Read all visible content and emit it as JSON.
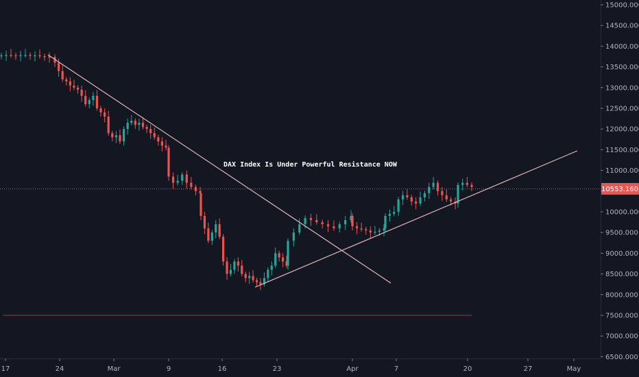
{
  "chart_data": {
    "type": "candlestick",
    "title": "",
    "annotation": "DAX Index Is Under Powerful Resistance NOW",
    "current_price": "10553.160",
    "support_level": 7500,
    "y_ticks": [
      "6500.000",
      "7000.000",
      "7500.000",
      "8000.000",
      "8500.000",
      "9000.000",
      "9500.000",
      "10000.000",
      "10500.000",
      "11000.000",
      "11500.000",
      "12000.000",
      "12500.000",
      "13000.000",
      "13500.000",
      "14000.000",
      "14500.000",
      "15000.000"
    ],
    "ylim": [
      6500,
      15000
    ],
    "x_ticks": [
      "17",
      "24",
      "Mar",
      "9",
      "16",
      "23",
      "Apr",
      "7",
      "20",
      "27",
      "May"
    ],
    "x_label": "",
    "y_label": "",
    "colors": {
      "up": "#26a69a",
      "down": "#ef5350",
      "trendline": "#e8b4b8",
      "price_line": "#ef5350",
      "background": "#131722",
      "tag": "#ef5350"
    },
    "candles_close_path": [
      [
        0,
        13780
      ],
      [
        2,
        13790
      ],
      [
        4,
        13780
      ],
      [
        6,
        13770
      ],
      [
        8,
        13785
      ],
      [
        10,
        13790
      ],
      [
        12,
        13775
      ],
      [
        14,
        13780
      ],
      [
        16,
        13760
      ],
      [
        18,
        13750
      ],
      [
        20,
        13740
      ],
      [
        22,
        13600
      ],
      [
        23,
        13400
      ],
      [
        24,
        13200
      ],
      [
        25,
        13150
      ],
      [
        26,
        13050
      ],
      [
        27,
        13000
      ],
      [
        28,
        12950
      ],
      [
        29,
        12800
      ],
      [
        30,
        12600
      ],
      [
        31,
        12700
      ],
      [
        32,
        12800
      ],
      [
        33,
        12500
      ],
      [
        34,
        12400
      ],
      [
        35,
        12300
      ],
      [
        36,
        11900
      ],
      [
        37,
        11800
      ],
      [
        38,
        11850
      ],
      [
        39,
        11700
      ],
      [
        40,
        12000
      ],
      [
        41,
        12150
      ],
      [
        42,
        12200
      ],
      [
        43,
        12100
      ],
      [
        44,
        12150
      ],
      [
        45,
        12050
      ],
      [
        46,
        12000
      ],
      [
        47,
        11900
      ],
      [
        48,
        11800
      ],
      [
        49,
        11700
      ],
      [
        50,
        11600
      ],
      [
        51,
        11550
      ],
      [
        52,
        10850
      ],
      [
        53,
        10700
      ],
      [
        54,
        10750
      ],
      [
        55,
        10900
      ],
      [
        56,
        10700
      ],
      [
        57,
        10600
      ],
      [
        58,
        10500
      ],
      [
        59,
        10450
      ],
      [
        60,
        9900
      ],
      [
        61,
        9600
      ],
      [
        62,
        9300
      ],
      [
        63,
        9500
      ],
      [
        64,
        9700
      ],
      [
        65,
        9400
      ],
      [
        66,
        8800
      ],
      [
        67,
        8500
      ],
      [
        68,
        8600
      ],
      [
        69,
        8800
      ],
      [
        70,
        8700
      ],
      [
        71,
        8500
      ],
      [
        72,
        8400
      ],
      [
        73,
        8450
      ],
      [
        74,
        8350
      ],
      [
        75,
        8300
      ],
      [
        76,
        8250
      ],
      [
        77,
        8400
      ],
      [
        78,
        8600
      ],
      [
        79,
        8700
      ],
      [
        80,
        9000
      ],
      [
        81,
        8900
      ],
      [
        82,
        8800
      ],
      [
        83,
        8700
      ],
      [
        84,
        9300
      ],
      [
        85,
        9500
      ],
      [
        86,
        9700
      ],
      [
        87,
        9850
      ],
      [
        88,
        9800
      ],
      [
        89,
        9750
      ],
      [
        90,
        9700
      ],
      [
        91,
        9650
      ],
      [
        92,
        9600
      ],
      [
        93,
        9700
      ],
      [
        94,
        9800
      ],
      [
        95,
        9900
      ],
      [
        96,
        9650
      ],
      [
        97,
        9600
      ],
      [
        98,
        9580
      ],
      [
        99,
        9550
      ],
      [
        100,
        9500
      ],
      [
        101,
        9520
      ],
      [
        102,
        9550
      ],
      [
        103,
        9600
      ],
      [
        104,
        9900
      ],
      [
        105,
        9950
      ],
      [
        106,
        10000
      ],
      [
        107,
        10300
      ],
      [
        108,
        10400
      ],
      [
        109,
        10350
      ],
      [
        110,
        10250
      ],
      [
        111,
        10200
      ],
      [
        112,
        10350
      ],
      [
        113,
        10450
      ],
      [
        114,
        10600
      ],
      [
        115,
        10700
      ],
      [
        116,
        10500
      ],
      [
        117,
        10400
      ],
      [
        118,
        10300
      ],
      [
        119,
        10250
      ],
      [
        120,
        10200
      ],
      [
        121,
        10650
      ],
      [
        122,
        10700
      ],
      [
        123,
        10650
      ],
      [
        124,
        10600
      ]
    ]
  }
}
